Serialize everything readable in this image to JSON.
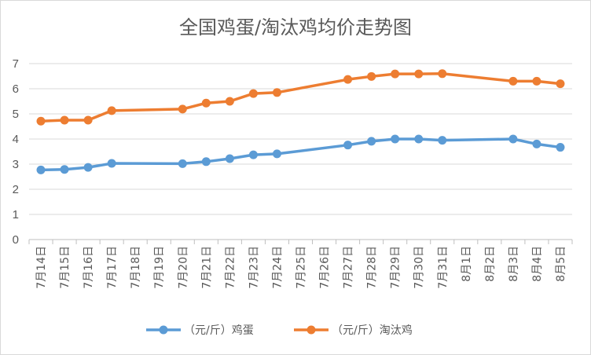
{
  "chart_data": {
    "type": "line",
    "title": "全国鸡蛋/淘汰鸡均价走势图",
    "xlabel": "",
    "ylabel": "",
    "ylim": [
      0,
      7
    ],
    "yticks": [
      0,
      1,
      2,
      3,
      4,
      5,
      6,
      7
    ],
    "grid": true,
    "legend_position": "bottom",
    "categories": [
      "7月14日",
      "7月15日",
      "7月16日",
      "7月17日",
      "7月18日",
      "7月19日",
      "7月20日",
      "7月21日",
      "7月22日",
      "7月23日",
      "7月24日",
      "7月25日",
      "7月26日",
      "7月27日",
      "7月28日",
      "7月29日",
      "7月30日",
      "7月31日",
      "8月1日",
      "8月2日",
      "8月3日",
      "8月4日",
      "8月5日"
    ],
    "series": [
      {
        "name": "（元/斤）鸡蛋",
        "color": "#5b9bd5",
        "values": [
          2.77,
          2.79,
          2.87,
          3.03,
          null,
          null,
          3.02,
          3.1,
          3.22,
          3.37,
          3.41,
          null,
          null,
          3.76,
          3.91,
          4.0,
          4.0,
          3.95,
          null,
          null,
          4.0,
          3.8,
          3.67
        ]
      },
      {
        "name": "（元/斤）淘汰鸡",
        "color": "#ed7d31",
        "values": [
          4.71,
          4.75,
          4.75,
          5.13,
          null,
          null,
          5.19,
          5.43,
          5.5,
          5.81,
          5.85,
          null,
          null,
          6.37,
          6.49,
          6.59,
          6.59,
          6.6,
          null,
          null,
          6.3,
          6.3,
          6.2
        ]
      }
    ]
  }
}
